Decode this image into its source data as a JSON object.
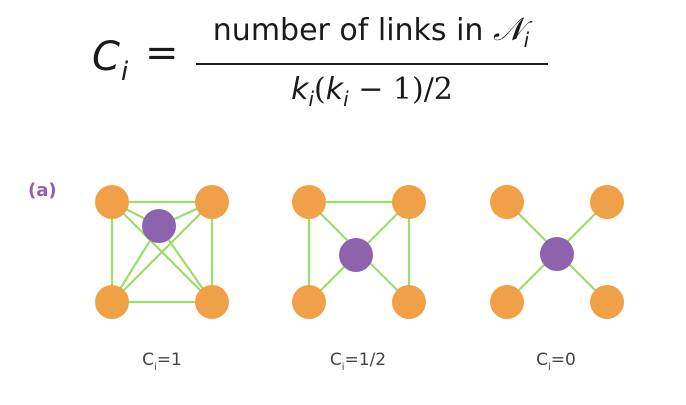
{
  "formula": {
    "lhs_symbol": "C",
    "lhs_index": "i",
    "equals": "=",
    "numerator_text": "number of links in ",
    "numerator_set": "𝒩",
    "numerator_index": "i",
    "denominator_k": "k",
    "denominator_index": "i",
    "denominator_open": "(",
    "denominator_k2": "k",
    "denominator_index2": "i",
    "denominator_rest": " − 1)/2"
  },
  "panel_label": "(a)",
  "captions": [
    {
      "symbol": "C",
      "index": "i",
      "value": "=1"
    },
    {
      "symbol": "C",
      "index": "i",
      "value": "=1/2"
    },
    {
      "symbol": "C",
      "index": "i",
      "value": "=0"
    }
  ],
  "colors": {
    "neighbor_node": "#f0a148",
    "center_node": "#8e63ad",
    "link": "#9bdc6a",
    "label": "#8e63ad"
  }
}
